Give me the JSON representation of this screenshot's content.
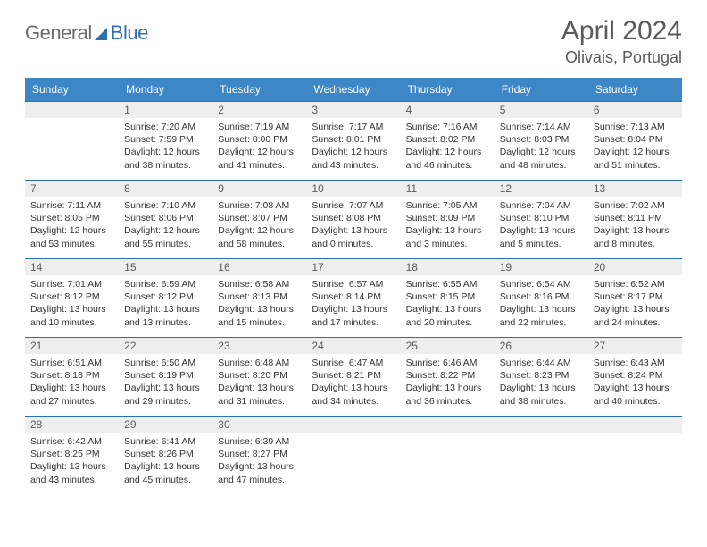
{
  "logo": {
    "word1": "General",
    "word2": "Blue"
  },
  "title": {
    "month": "April 2024",
    "location": "Olivais, Portugal"
  },
  "calendar": {
    "header_bg": "#3d87c7",
    "header_fg": "#ffffff",
    "rule_color": "#2e6fb0",
    "daynum_bg": "#eeeeee",
    "weekdays": [
      "Sunday",
      "Monday",
      "Tuesday",
      "Wednesday",
      "Thursday",
      "Friday",
      "Saturday"
    ],
    "weeks": [
      [
        null,
        {
          "n": "1",
          "sr": "Sunrise: 7:20 AM",
          "ss": "Sunset: 7:59 PM",
          "d1": "Daylight: 12 hours",
          "d2": "and 38 minutes."
        },
        {
          "n": "2",
          "sr": "Sunrise: 7:19 AM",
          "ss": "Sunset: 8:00 PM",
          "d1": "Daylight: 12 hours",
          "d2": "and 41 minutes."
        },
        {
          "n": "3",
          "sr": "Sunrise: 7:17 AM",
          "ss": "Sunset: 8:01 PM",
          "d1": "Daylight: 12 hours",
          "d2": "and 43 minutes."
        },
        {
          "n": "4",
          "sr": "Sunrise: 7:16 AM",
          "ss": "Sunset: 8:02 PM",
          "d1": "Daylight: 12 hours",
          "d2": "and 46 minutes."
        },
        {
          "n": "5",
          "sr": "Sunrise: 7:14 AM",
          "ss": "Sunset: 8:03 PM",
          "d1": "Daylight: 12 hours",
          "d2": "and 48 minutes."
        },
        {
          "n": "6",
          "sr": "Sunrise: 7:13 AM",
          "ss": "Sunset: 8:04 PM",
          "d1": "Daylight: 12 hours",
          "d2": "and 51 minutes."
        }
      ],
      [
        {
          "n": "7",
          "sr": "Sunrise: 7:11 AM",
          "ss": "Sunset: 8:05 PM",
          "d1": "Daylight: 12 hours",
          "d2": "and 53 minutes."
        },
        {
          "n": "8",
          "sr": "Sunrise: 7:10 AM",
          "ss": "Sunset: 8:06 PM",
          "d1": "Daylight: 12 hours",
          "d2": "and 55 minutes."
        },
        {
          "n": "9",
          "sr": "Sunrise: 7:08 AM",
          "ss": "Sunset: 8:07 PM",
          "d1": "Daylight: 12 hours",
          "d2": "and 58 minutes."
        },
        {
          "n": "10",
          "sr": "Sunrise: 7:07 AM",
          "ss": "Sunset: 8:08 PM",
          "d1": "Daylight: 13 hours",
          "d2": "and 0 minutes."
        },
        {
          "n": "11",
          "sr": "Sunrise: 7:05 AM",
          "ss": "Sunset: 8:09 PM",
          "d1": "Daylight: 13 hours",
          "d2": "and 3 minutes."
        },
        {
          "n": "12",
          "sr": "Sunrise: 7:04 AM",
          "ss": "Sunset: 8:10 PM",
          "d1": "Daylight: 13 hours",
          "d2": "and 5 minutes."
        },
        {
          "n": "13",
          "sr": "Sunrise: 7:02 AM",
          "ss": "Sunset: 8:11 PM",
          "d1": "Daylight: 13 hours",
          "d2": "and 8 minutes."
        }
      ],
      [
        {
          "n": "14",
          "sr": "Sunrise: 7:01 AM",
          "ss": "Sunset: 8:12 PM",
          "d1": "Daylight: 13 hours",
          "d2": "and 10 minutes."
        },
        {
          "n": "15",
          "sr": "Sunrise: 6:59 AM",
          "ss": "Sunset: 8:12 PM",
          "d1": "Daylight: 13 hours",
          "d2": "and 13 minutes."
        },
        {
          "n": "16",
          "sr": "Sunrise: 6:58 AM",
          "ss": "Sunset: 8:13 PM",
          "d1": "Daylight: 13 hours",
          "d2": "and 15 minutes."
        },
        {
          "n": "17",
          "sr": "Sunrise: 6:57 AM",
          "ss": "Sunset: 8:14 PM",
          "d1": "Daylight: 13 hours",
          "d2": "and 17 minutes."
        },
        {
          "n": "18",
          "sr": "Sunrise: 6:55 AM",
          "ss": "Sunset: 8:15 PM",
          "d1": "Daylight: 13 hours",
          "d2": "and 20 minutes."
        },
        {
          "n": "19",
          "sr": "Sunrise: 6:54 AM",
          "ss": "Sunset: 8:16 PM",
          "d1": "Daylight: 13 hours",
          "d2": "and 22 minutes."
        },
        {
          "n": "20",
          "sr": "Sunrise: 6:52 AM",
          "ss": "Sunset: 8:17 PM",
          "d1": "Daylight: 13 hours",
          "d2": "and 24 minutes."
        }
      ],
      [
        {
          "n": "21",
          "sr": "Sunrise: 6:51 AM",
          "ss": "Sunset: 8:18 PM",
          "d1": "Daylight: 13 hours",
          "d2": "and 27 minutes."
        },
        {
          "n": "22",
          "sr": "Sunrise: 6:50 AM",
          "ss": "Sunset: 8:19 PM",
          "d1": "Daylight: 13 hours",
          "d2": "and 29 minutes."
        },
        {
          "n": "23",
          "sr": "Sunrise: 6:48 AM",
          "ss": "Sunset: 8:20 PM",
          "d1": "Daylight: 13 hours",
          "d2": "and 31 minutes."
        },
        {
          "n": "24",
          "sr": "Sunrise: 6:47 AM",
          "ss": "Sunset: 8:21 PM",
          "d1": "Daylight: 13 hours",
          "d2": "and 34 minutes."
        },
        {
          "n": "25",
          "sr": "Sunrise: 6:46 AM",
          "ss": "Sunset: 8:22 PM",
          "d1": "Daylight: 13 hours",
          "d2": "and 36 minutes."
        },
        {
          "n": "26",
          "sr": "Sunrise: 6:44 AM",
          "ss": "Sunset: 8:23 PM",
          "d1": "Daylight: 13 hours",
          "d2": "and 38 minutes."
        },
        {
          "n": "27",
          "sr": "Sunrise: 6:43 AM",
          "ss": "Sunset: 8:24 PM",
          "d1": "Daylight: 13 hours",
          "d2": "and 40 minutes."
        }
      ],
      [
        {
          "n": "28",
          "sr": "Sunrise: 6:42 AM",
          "ss": "Sunset: 8:25 PM",
          "d1": "Daylight: 13 hours",
          "d2": "and 43 minutes."
        },
        {
          "n": "29",
          "sr": "Sunrise: 6:41 AM",
          "ss": "Sunset: 8:26 PM",
          "d1": "Daylight: 13 hours",
          "d2": "and 45 minutes."
        },
        {
          "n": "30",
          "sr": "Sunrise: 6:39 AM",
          "ss": "Sunset: 8:27 PM",
          "d1": "Daylight: 13 hours",
          "d2": "and 47 minutes."
        },
        null,
        null,
        null,
        null
      ]
    ]
  }
}
